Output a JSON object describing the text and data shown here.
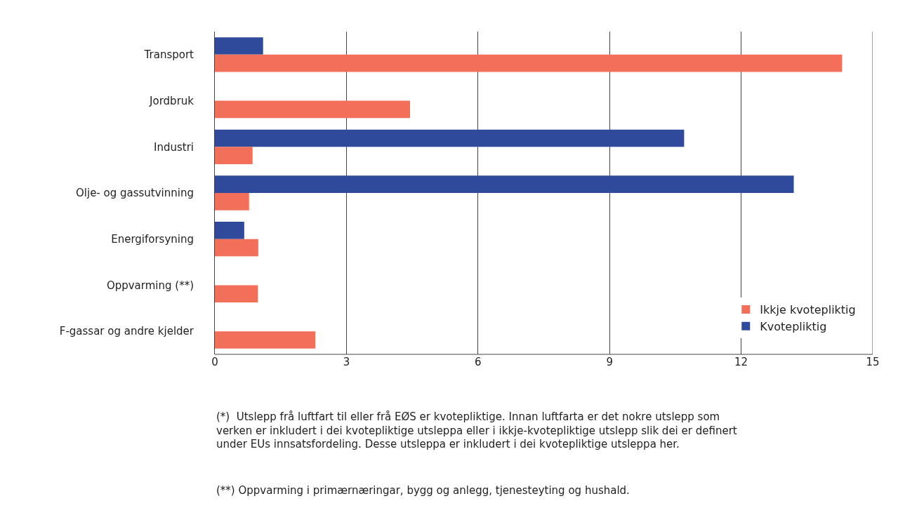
{
  "chart_data": {
    "type": "bar",
    "orientation": "horizontal",
    "categories": [
      "Transport",
      "Jordbruk",
      "Industri",
      "Olje- og gassutvinning",
      "Energiforsyning",
      "Oppvarming (**)",
      "F-gassar og andre kjelder"
    ],
    "series": [
      {
        "name": "Kvotepliktig",
        "color": "#2f4a9a",
        "values": [
          1.1,
          null,
          10.7,
          13.2,
          0.67,
          null,
          null
        ]
      },
      {
        "name": "Ikkje kvotepliktig",
        "color": "#f2705a",
        "values": [
          14.3,
          4.45,
          0.86,
          0.78,
          0.99,
          0.98,
          2.29
        ]
      }
    ],
    "xlim": [
      0,
      15
    ],
    "xticks": [
      0,
      3,
      6,
      9,
      12,
      15
    ],
    "grid": "x",
    "legend": "bottom right",
    "annotations": [
      "(*)  Utslepp frå luftfart til eller frå EØS er kvotepliktige. Innan luftfarta er det nokre utslepp som verken er inkludert i dei kvotepliktige utsleppa eller i ikkje-kvotepliktige utslepp slik dei er definert under EUs innsatsfordeling. Desse utsleppa er inkludert i dei kvotepliktige utsleppa her.",
      "(**) Oppvarming i primærnæringar, bygg og anlegg, tjenesteyting og hushald."
    ]
  }
}
